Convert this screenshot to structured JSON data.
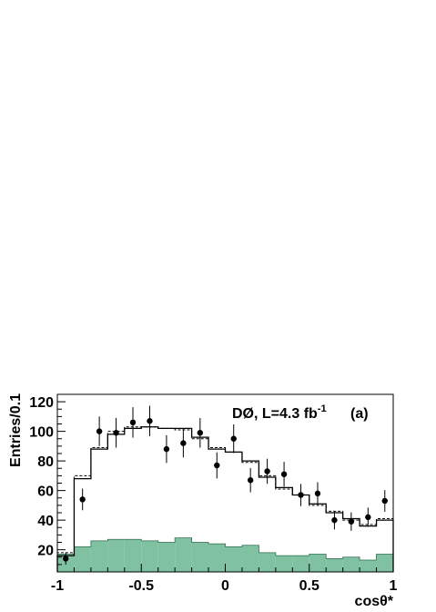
{
  "chart_data": {
    "type": "histogram",
    "xlabel": "cosθ*",
    "ylabel": "Entries/0.1",
    "xlim": [
      -1,
      1
    ],
    "ylim": [
      5,
      125
    ],
    "xticks": [
      -1,
      -0.5,
      0,
      0.5,
      1
    ],
    "xtick_labels": [
      "-1",
      "-0.5",
      "0",
      "0.5",
      "1"
    ],
    "yticks": [
      20,
      40,
      60,
      80,
      100,
      120
    ],
    "ytick_labels": [
      "20",
      "40",
      "60",
      "80",
      "100",
      "120"
    ],
    "grid": false,
    "legend": "none",
    "annotations": {
      "experiment_prefix": "DØ, L=4.3 fb",
      "experiment_superscript": "-1",
      "panel": "(a)"
    },
    "bin_edges": [
      -1.0,
      -0.9,
      -0.8,
      -0.7,
      -0.6,
      -0.5,
      -0.4,
      -0.3,
      -0.2,
      -0.1,
      0.0,
      0.1,
      0.2,
      0.3,
      0.4,
      0.5,
      0.6,
      0.7,
      0.8,
      0.9,
      1.0
    ],
    "series": [
      {
        "kind": "background",
        "style": "filled",
        "color": "#7fc1a0",
        "values": [
          17,
          22,
          26,
          27,
          27,
          26,
          25,
          28,
          25,
          24,
          22,
          23,
          18,
          16,
          16,
          17,
          14,
          15,
          13,
          17
        ]
      },
      {
        "kind": "model",
        "style": "solid-step",
        "color": "#000000",
        "values": [
          16,
          68,
          88,
          98,
          102,
          103,
          102,
          102,
          96,
          88,
          86,
          80,
          69,
          62,
          57,
          51,
          45,
          41,
          36,
          40
        ]
      },
      {
        "kind": "model-alt",
        "style": "dashed-step",
        "color": "#000000",
        "values": [
          18,
          70,
          89,
          100,
          103,
          103,
          102,
          101,
          95,
          89,
          86,
          79,
          70,
          61,
          57,
          50,
          46,
          40,
          37,
          41
        ]
      },
      {
        "kind": "data",
        "style": "points",
        "color": "#000000",
        "x": [
          -0.95,
          -0.85,
          -0.75,
          -0.65,
          -0.55,
          -0.45,
          -0.35,
          -0.25,
          -0.15,
          -0.05,
          0.05,
          0.15,
          0.25,
          0.35,
          0.45,
          0.55,
          0.65,
          0.75,
          0.85,
          0.95
        ],
        "values": [
          14,
          54,
          100,
          99,
          106,
          107,
          88,
          92,
          99,
          77,
          95,
          67,
          73,
          71,
          57,
          58,
          40,
          39,
          42,
          53
        ],
        "errors": [
          4,
          7.3,
          10,
          10,
          10.3,
          10.3,
          9.4,
          9.6,
          10,
          8.8,
          9.7,
          8.2,
          8.5,
          8.4,
          7.5,
          7.6,
          6.3,
          6.2,
          6.5,
          7.3
        ]
      }
    ]
  }
}
